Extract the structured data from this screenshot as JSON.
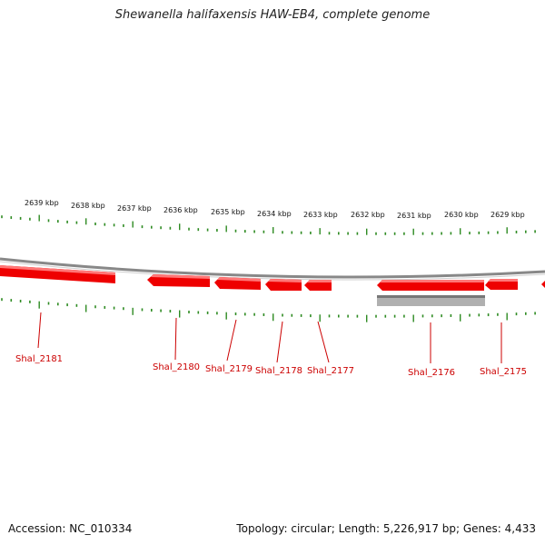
{
  "title": "Shewanella halifaxensis HAW-EB4, complete genome",
  "footer": {
    "accession": "Accession: NC_010334",
    "summary": "Topology: circular; Length: 5,226,917 bp; Genes: 4,433"
  },
  "colors": {
    "gene": "#ee0000",
    "gene_highlight": "#ff7777",
    "backbone": "#888888",
    "tick": "#2e8b22",
    "label": "#cc0000",
    "feature_gray": "#b0b0b0"
  },
  "scale_labels": [
    "2639 kbp",
    "2638 kbp",
    "2637 kbp",
    "2636 kbp",
    "2635 kbp",
    "2634 kbp",
    "2633 kbp",
    "2632 kbp",
    "2631 kbp",
    "2630 kbp",
    "2629 kbp"
  ],
  "genes": [
    {
      "name": "Shal_2181",
      "strand": "forward"
    },
    {
      "name": "Shal_2180",
      "strand": "reverse"
    },
    {
      "name": "Shal_2179",
      "strand": "reverse"
    },
    {
      "name": "Shal_2178",
      "strand": "reverse"
    },
    {
      "name": "Shal_2177",
      "strand": "reverse"
    },
    {
      "name": "Shal_2176",
      "strand": "reverse"
    },
    {
      "name": "Shal_2175",
      "strand": "reverse"
    }
  ]
}
